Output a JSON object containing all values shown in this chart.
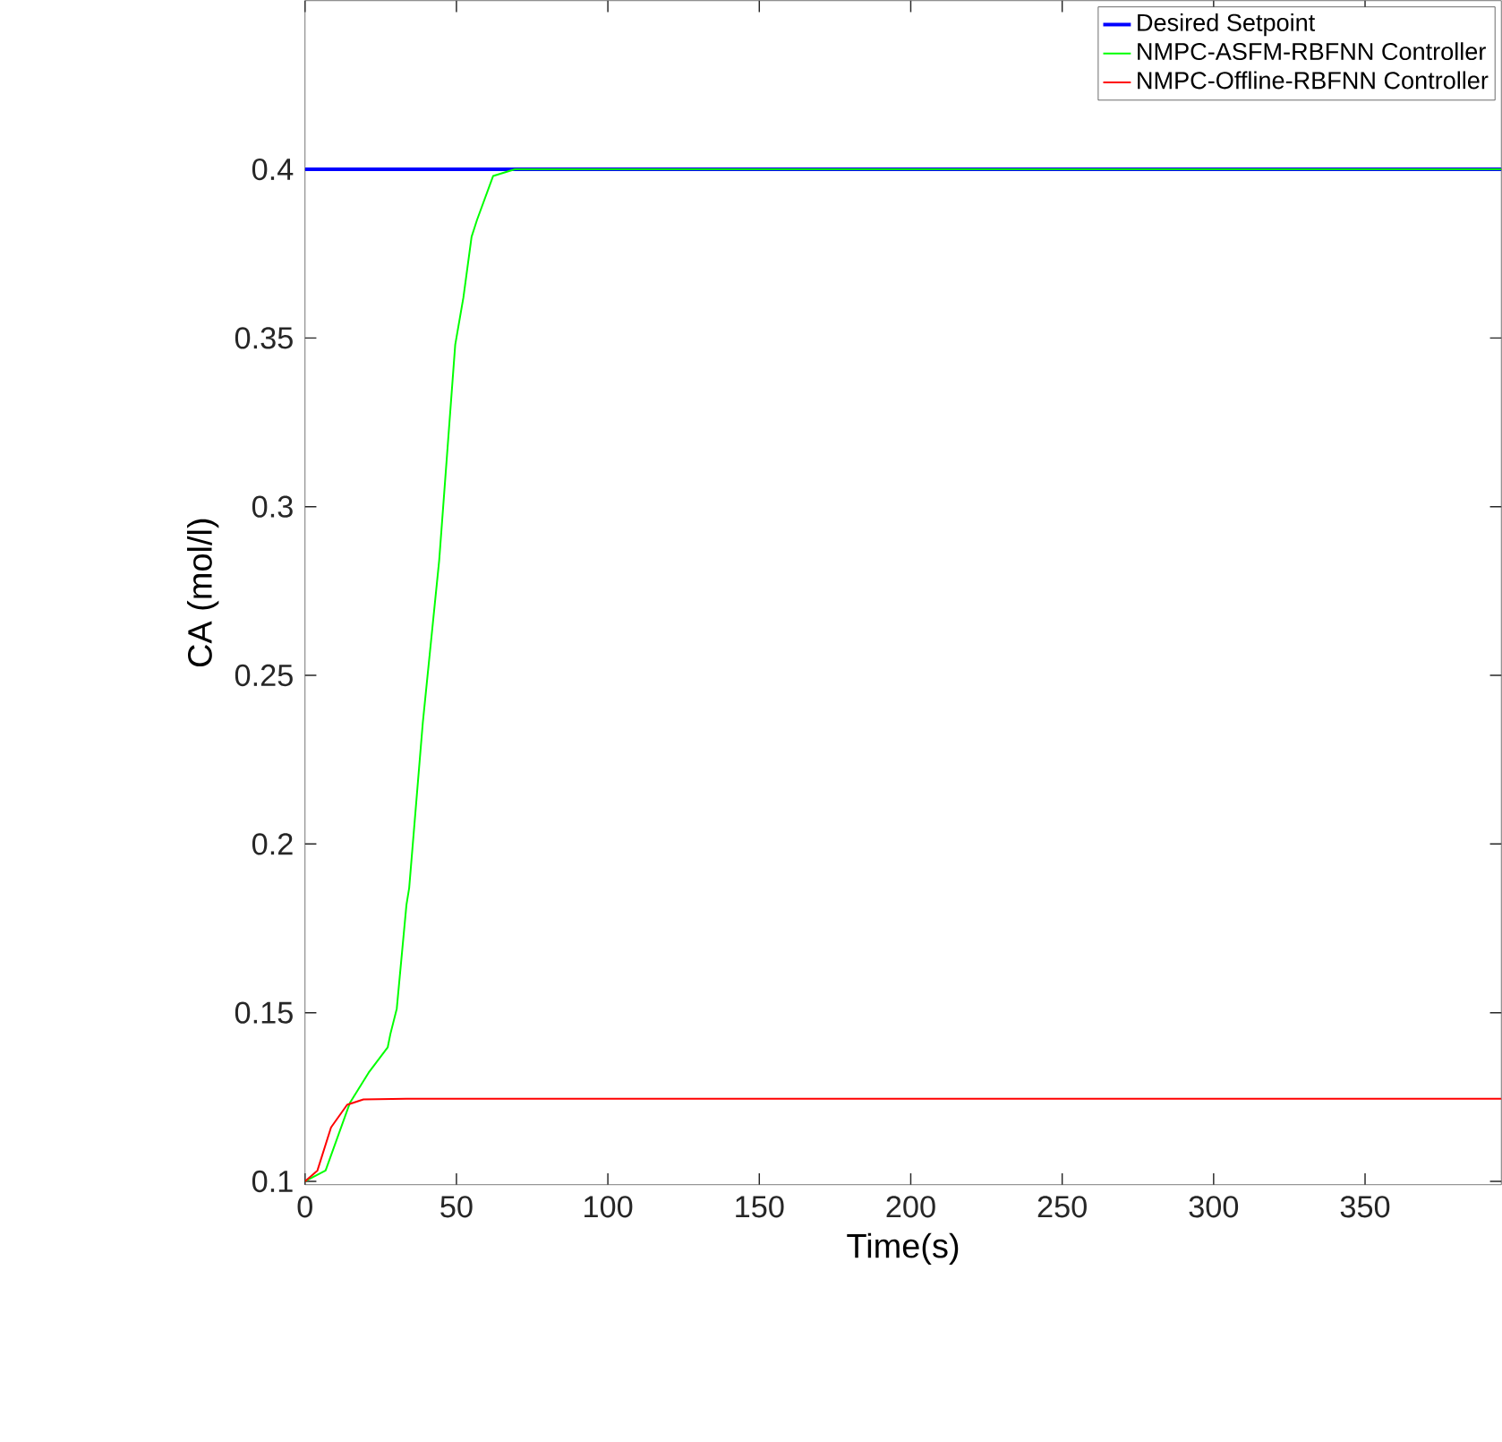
{
  "chart_data": {
    "type": "line",
    "xlabel": "Time(s)",
    "ylabel": "CA (mol/l)",
    "xlim": [
      0,
      395
    ],
    "ylim": [
      0.099,
      0.45
    ],
    "xticks": [
      0,
      50,
      100,
      150,
      200,
      250,
      300,
      350
    ],
    "yticks": [
      0.1,
      0.15,
      0.2,
      0.25,
      0.3,
      0.35,
      0.4
    ],
    "legend": "top right",
    "grid": false,
    "marker": "none",
    "line_style": "solid",
    "series": [
      {
        "name": "Desired Setpoint",
        "color": "#0000ff",
        "x": [
          0,
          395
        ],
        "values": [
          0.4,
          0.4
        ]
      },
      {
        "name": "NMPC-ASFM-RBFNN Controller",
        "color": "#00ff00",
        "x": [
          0,
          6.8,
          14.8,
          21,
          27.3,
          28.2,
          30.3,
          33.5,
          34.4,
          38.9,
          44.3,
          49.6,
          52.3,
          55,
          56.8,
          62.1,
          69.3,
          395
        ],
        "values": [
          0.1,
          0.1032,
          0.1232,
          0.1322,
          0.1397,
          0.1437,
          0.1512,
          0.182,
          0.187,
          0.236,
          0.284,
          0.348,
          0.362,
          0.38,
          0.385,
          0.398,
          0.4,
          0.4
        ]
      },
      {
        "name": "NMPC-Offline-RBFNN Controller",
        "color": "#ff0000",
        "x": [
          0,
          4.1,
          8.6,
          13.9,
          19.3,
          33.5,
          395
        ],
        "values": [
          0.1,
          0.1032,
          0.116,
          0.1227,
          0.1243,
          0.1245,
          0.1245
        ]
      }
    ]
  }
}
